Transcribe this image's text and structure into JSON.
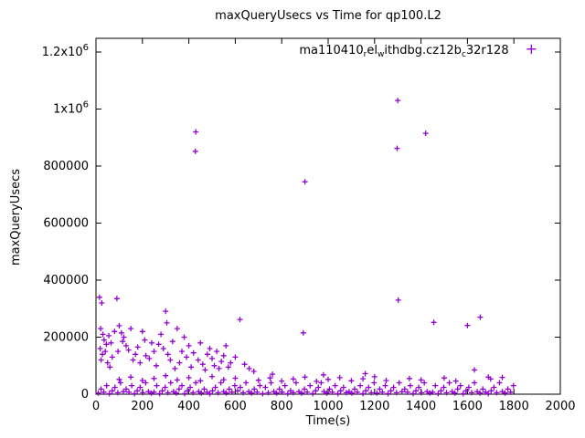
{
  "colors": {
    "marker": "#9400d3",
    "axis": "#000000",
    "background": "#ffffff"
  },
  "chart_data": {
    "type": "scatter",
    "marker": "plus",
    "title": "maxQueryUsecs vs Time for qp100.L2",
    "xlabel": "Time(s)",
    "ylabel": "maxQueryUsecs",
    "xlim": [
      0,
      2000
    ],
    "ylim": [
      0,
      1200000
    ],
    "grid": false,
    "xticks": [
      0,
      200,
      400,
      600,
      800,
      1000,
      1200,
      1400,
      1600,
      1800,
      2000
    ],
    "yticks": [
      {
        "v": 0,
        "label": "0"
      },
      {
        "v": 200000,
        "label": "200000"
      },
      {
        "v": 400000,
        "label": "400000"
      },
      {
        "v": 600000,
        "label": "600000"
      },
      {
        "v": 800000,
        "label": "800000"
      },
      {
        "v": 1000000,
        "label": "1x10^6"
      },
      {
        "v": 1200000,
        "label": "1.2x10^6"
      }
    ],
    "legend": {
      "position": "top-right-inside",
      "marker_glyph": "+",
      "segments": [
        {
          "text": "ma110410",
          "sub": false
        },
        {
          "text": "r",
          "sub": true
        },
        {
          "text": "el",
          "sub": false
        },
        {
          "text": "w",
          "sub": true
        },
        {
          "text": "ithdbg.cz12b",
          "sub": false
        },
        {
          "text": "c",
          "sub": true
        },
        {
          "text": "32r128",
          "sub": false
        }
      ]
    },
    "series": [
      {
        "name": "ma110410relwithdbg.cz12bc32r128",
        "points": [
          [
            430,
            920000
          ],
          [
            428,
            852000
          ],
          [
            900,
            745000
          ],
          [
            893,
            215000
          ],
          [
            1300,
            1030000
          ],
          [
            1297,
            862000
          ],
          [
            1302,
            330000
          ],
          [
            1420,
            915000
          ],
          [
            1455,
            252000
          ],
          [
            1600,
            241000
          ],
          [
            1655,
            270000
          ],
          [
            15,
            340000
          ],
          [
            25,
            320000
          ],
          [
            20,
            230000
          ],
          [
            30,
            210000
          ],
          [
            35,
            190000
          ],
          [
            18,
            160000
          ],
          [
            40,
            150000
          ],
          [
            28,
            140000
          ],
          [
            45,
            175000
          ],
          [
            22,
            120000
          ],
          [
            50,
            110000
          ],
          [
            60,
            95000
          ],
          [
            55,
            205000
          ],
          [
            65,
            180000
          ],
          [
            70,
            130000
          ],
          [
            80,
            220000
          ],
          [
            90,
            335000
          ],
          [
            95,
            150000
          ],
          [
            100,
            240000
          ],
          [
            110,
            215000
          ],
          [
            115,
            185000
          ],
          [
            120,
            200000
          ],
          [
            130,
            170000
          ],
          [
            140,
            155000
          ],
          [
            150,
            230000
          ],
          [
            160,
            120000
          ],
          [
            170,
            140000
          ],
          [
            180,
            165000
          ],
          [
            190,
            110000
          ],
          [
            200,
            220000
          ],
          [
            210,
            190000
          ],
          [
            215,
            135000
          ],
          [
            230,
            125000
          ],
          [
            240,
            180000
          ],
          [
            250,
            150000
          ],
          [
            260,
            100000
          ],
          [
            270,
            175000
          ],
          [
            280,
            210000
          ],
          [
            290,
            160000
          ],
          [
            300,
            291000
          ],
          [
            305,
            250000
          ],
          [
            310,
            140000
          ],
          [
            320,
            120000
          ],
          [
            330,
            185000
          ],
          [
            340,
            90000
          ],
          [
            350,
            230000
          ],
          [
            360,
            110000
          ],
          [
            370,
            150000
          ],
          [
            380,
            200000
          ],
          [
            390,
            130000
          ],
          [
            400,
            170000
          ],
          [
            410,
            95000
          ],
          [
            420,
            145000
          ],
          [
            440,
            120000
          ],
          [
            450,
            180000
          ],
          [
            460,
            105000
          ],
          [
            470,
            85000
          ],
          [
            480,
            140000
          ],
          [
            490,
            160000
          ],
          [
            500,
            125000
          ],
          [
            510,
            100000
          ],
          [
            520,
            150000
          ],
          [
            530,
            90000
          ],
          [
            540,
            115000
          ],
          [
            550,
            135000
          ],
          [
            560,
            170000
          ],
          [
            570,
            95000
          ],
          [
            580,
            110000
          ],
          [
            600,
            130000
          ],
          [
            620,
            262000
          ],
          [
            640,
            105000
          ],
          [
            660,
            90000
          ],
          [
            680,
            80000
          ],
          [
            100,
            52000
          ],
          [
            150,
            60000
          ],
          [
            200,
            48000
          ],
          [
            250,
            55000
          ],
          [
            300,
            65000
          ],
          [
            350,
            50000
          ],
          [
            400,
            58000
          ],
          [
            450,
            47000
          ],
          [
            500,
            62000
          ],
          [
            550,
            51000
          ],
          [
            600,
            56000
          ],
          [
            700,
            49000
          ],
          [
            750,
            57000
          ],
          [
            800,
            46000
          ],
          [
            850,
            53000
          ],
          [
            900,
            60000
          ],
          [
            950,
            45000
          ],
          [
            1000,
            52000
          ],
          [
            1050,
            58000
          ],
          [
            1100,
            47000
          ],
          [
            1150,
            54000
          ],
          [
            1200,
            61000
          ],
          [
            1250,
            48000
          ],
          [
            1350,
            55000
          ],
          [
            1400,
            50000
          ],
          [
            1500,
            57000
          ],
          [
            1550,
            46000
          ],
          [
            1700,
            53000
          ],
          [
            1750,
            59000
          ],
          [
            760,
            70000
          ],
          [
            980,
            68000
          ],
          [
            1160,
            72000
          ],
          [
            1630,
            85000
          ],
          [
            1690,
            60000
          ],
          [
            10,
            4000
          ],
          [
            22,
            18000
          ],
          [
            34,
            7000
          ],
          [
            46,
            30000
          ],
          [
            58,
            2000
          ],
          [
            70,
            12000
          ],
          [
            82,
            24000
          ],
          [
            94,
            5000
          ],
          [
            106,
            40000
          ],
          [
            118,
            9000
          ],
          [
            130,
            18000
          ],
          [
            142,
            7000
          ],
          [
            154,
            30000
          ],
          [
            166,
            2000
          ],
          [
            178,
            12000
          ],
          [
            190,
            24000
          ],
          [
            202,
            5000
          ],
          [
            214,
            40000
          ],
          [
            226,
            9000
          ],
          [
            238,
            4000
          ],
          [
            250,
            7000
          ],
          [
            262,
            30000
          ],
          [
            274,
            2000
          ],
          [
            286,
            12000
          ],
          [
            298,
            24000
          ],
          [
            310,
            5000
          ],
          [
            322,
            40000
          ],
          [
            334,
            9000
          ],
          [
            346,
            4000
          ],
          [
            358,
            18000
          ],
          [
            370,
            30000
          ],
          [
            382,
            2000
          ],
          [
            394,
            12000
          ],
          [
            406,
            24000
          ],
          [
            418,
            5000
          ],
          [
            430,
            40000
          ],
          [
            442,
            9000
          ],
          [
            454,
            4000
          ],
          [
            466,
            18000
          ],
          [
            478,
            7000
          ],
          [
            490,
            2000
          ],
          [
            502,
            12000
          ],
          [
            514,
            24000
          ],
          [
            526,
            5000
          ],
          [
            538,
            40000
          ],
          [
            550,
            9000
          ],
          [
            562,
            4000
          ],
          [
            574,
            18000
          ],
          [
            586,
            7000
          ],
          [
            598,
            30000
          ],
          [
            610,
            12000
          ],
          [
            622,
            24000
          ],
          [
            634,
            5000
          ],
          [
            646,
            40000
          ],
          [
            658,
            9000
          ],
          [
            670,
            4000
          ],
          [
            682,
            18000
          ],
          [
            694,
            7000
          ],
          [
            706,
            30000
          ],
          [
            718,
            2000
          ],
          [
            730,
            24000
          ],
          [
            742,
            5000
          ],
          [
            754,
            40000
          ],
          [
            766,
            9000
          ],
          [
            778,
            4000
          ],
          [
            790,
            18000
          ],
          [
            802,
            7000
          ],
          [
            814,
            30000
          ],
          [
            826,
            2000
          ],
          [
            838,
            12000
          ],
          [
            850,
            5000
          ],
          [
            862,
            40000
          ],
          [
            874,
            9000
          ],
          [
            886,
            4000
          ],
          [
            898,
            18000
          ],
          [
            910,
            7000
          ],
          [
            922,
            30000
          ],
          [
            934,
            2000
          ],
          [
            946,
            12000
          ],
          [
            958,
            24000
          ],
          [
            970,
            40000
          ],
          [
            982,
            9000
          ],
          [
            994,
            4000
          ],
          [
            1006,
            18000
          ],
          [
            1018,
            7000
          ],
          [
            1030,
            30000
          ],
          [
            1042,
            2000
          ],
          [
            1054,
            12000
          ],
          [
            1066,
            24000
          ],
          [
            1078,
            5000
          ],
          [
            1090,
            9000
          ],
          [
            1102,
            4000
          ],
          [
            1114,
            18000
          ],
          [
            1126,
            7000
          ],
          [
            1138,
            30000
          ],
          [
            1150,
            2000
          ],
          [
            1162,
            12000
          ],
          [
            1174,
            24000
          ],
          [
            1186,
            5000
          ],
          [
            1198,
            40000
          ],
          [
            1210,
            4000
          ],
          [
            1222,
            18000
          ],
          [
            1234,
            7000
          ],
          [
            1246,
            30000
          ],
          [
            1258,
            2000
          ],
          [
            1270,
            12000
          ],
          [
            1282,
            24000
          ],
          [
            1294,
            5000
          ],
          [
            1306,
            40000
          ],
          [
            1318,
            9000
          ],
          [
            1330,
            18000
          ],
          [
            1342,
            7000
          ],
          [
            1354,
            30000
          ],
          [
            1366,
            2000
          ],
          [
            1378,
            12000
          ],
          [
            1390,
            24000
          ],
          [
            1402,
            5000
          ],
          [
            1414,
            40000
          ],
          [
            1426,
            9000
          ],
          [
            1438,
            4000
          ],
          [
            1450,
            7000
          ],
          [
            1462,
            30000
          ],
          [
            1474,
            2000
          ],
          [
            1486,
            12000
          ],
          [
            1498,
            24000
          ],
          [
            1510,
            5000
          ],
          [
            1522,
            40000
          ],
          [
            1534,
            9000
          ],
          [
            1546,
            4000
          ],
          [
            1558,
            18000
          ],
          [
            1570,
            30000
          ],
          [
            1582,
            2000
          ],
          [
            1594,
            12000
          ],
          [
            1606,
            24000
          ],
          [
            1618,
            5000
          ],
          [
            1630,
            40000
          ],
          [
            1642,
            9000
          ],
          [
            1654,
            4000
          ],
          [
            1666,
            18000
          ],
          [
            1678,
            7000
          ],
          [
            1690,
            2000
          ],
          [
            1702,
            12000
          ],
          [
            1714,
            24000
          ],
          [
            1726,
            5000
          ],
          [
            1738,
            40000
          ],
          [
            1750,
            9000
          ],
          [
            1762,
            4000
          ],
          [
            1774,
            18000
          ],
          [
            1786,
            7000
          ],
          [
            1798,
            30000
          ]
        ]
      }
    ]
  }
}
